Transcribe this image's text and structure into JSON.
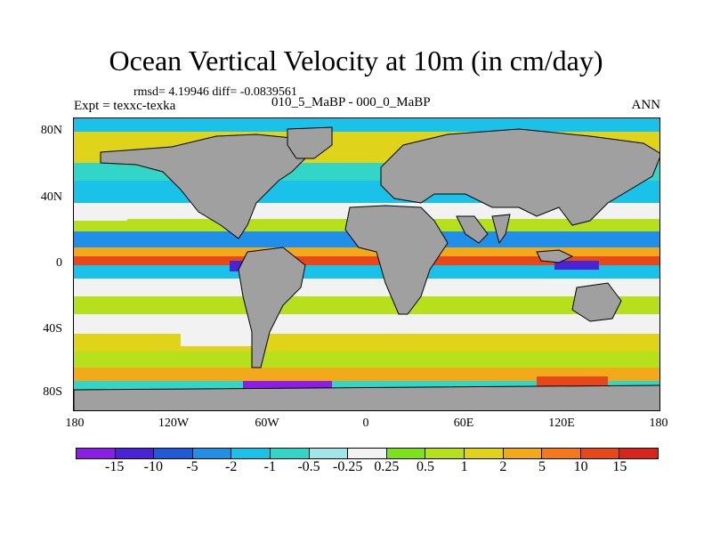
{
  "title": "Ocean Vertical Velocity at 10m (in cm/day)",
  "stats": "rmsd= 4.19946 diff= -0.0839561",
  "expt": "Expt = texxc-texka",
  "center_label": "010_5_MaBP - 000_0_MaBP",
  "season": "ANN",
  "y_ticks": [
    "80N",
    "40N",
    "0",
    "40S",
    "80S"
  ],
  "x_ticks": [
    "180",
    "120W",
    "60W",
    "0",
    "60E",
    "120E",
    "180"
  ],
  "colorbar": {
    "labels": [
      "-15",
      "-10",
      "-5",
      "-2",
      "-1",
      "-0.5",
      "-0.25",
      "0.25",
      "0.5",
      "1",
      "2",
      "5",
      "10",
      "15"
    ],
    "colors": [
      "#8a1ee6",
      "#4b23d6",
      "#1f5bd8",
      "#1f8fe8",
      "#1ac1e8",
      "#33d6c6",
      "#9fe6e6",
      "#f2f2f2",
      "#7ee21a",
      "#b7e01c",
      "#e0d41a",
      "#f2a91a",
      "#f27a1a",
      "#e84818",
      "#d8241a"
    ]
  },
  "map_colors": {
    "land": "#a0a0a0",
    "ocean_neutral": "#f2f2f2"
  }
}
